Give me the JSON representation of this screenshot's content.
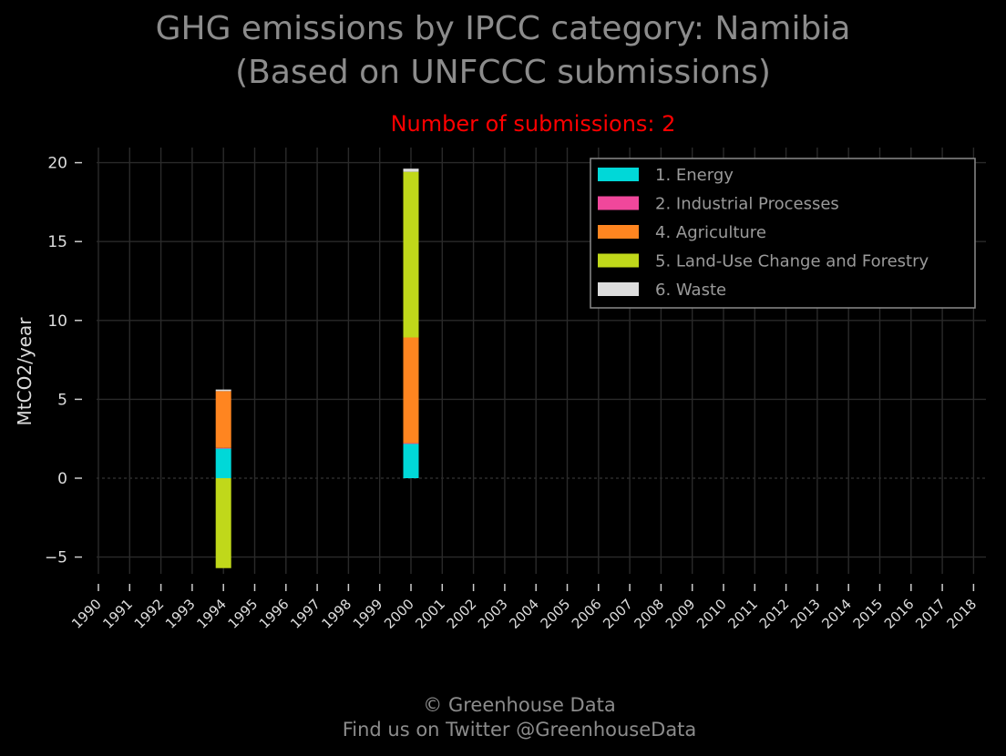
{
  "header": {
    "title_line1": "GHG emissions by IPCC category: Namibia",
    "title_line2": "(Based on UNFCCC submissions)",
    "subtitle": "Number of submissions: 2"
  },
  "footer": {
    "line1": "© Greenhouse Data",
    "line2": "Find us on Twitter @GreenhouseData"
  },
  "colors": {
    "background": "#000000",
    "title": "#8c8c8c",
    "subtitle": "#ff0000",
    "grid": "#2a2a2a",
    "tick_text": "#dddddd"
  },
  "chart_data": {
    "type": "bar",
    "stacked": true,
    "title": "GHG emissions by IPCC category: Namibia",
    "ylabel": "MtCO2/year",
    "xlabel": "",
    "ylim": [
      -7,
      21
    ],
    "yticks": [
      -5,
      0,
      5,
      10,
      15,
      20
    ],
    "ytick_labels": [
      "−5",
      "0",
      "5",
      "10",
      "15",
      "20"
    ],
    "grid": true,
    "legend_placement": "top-right",
    "categories": [
      "1990",
      "1991",
      "1992",
      "1993",
      "1994",
      "1995",
      "1996",
      "1997",
      "1998",
      "1999",
      "2000",
      "2001",
      "2002",
      "2003",
      "2004",
      "2005",
      "2006",
      "2007",
      "2008",
      "2009",
      "2010",
      "2011",
      "2012",
      "2013",
      "2014",
      "2015",
      "2016",
      "2017",
      "2018"
    ],
    "series": [
      {
        "name": "1. Energy",
        "color": "#00d8d8",
        "values": {
          "1994": 1.9,
          "2000": 2.2
        }
      },
      {
        "name": "2. Industrial Processes",
        "color": "#f0479b",
        "values": {
          "1994": 0.02,
          "2000": 0.02
        }
      },
      {
        "name": "4. Agriculture",
        "color": "#ff8520",
        "values": {
          "1994": 3.6,
          "2000": 6.7
        }
      },
      {
        "name": "5. Land-Use Change and Forestry",
        "color": "#c0d81a",
        "values": {
          "1994": -5.7,
          "2000": 10.5
        }
      },
      {
        "name": "6. Waste",
        "color": "#dddddd",
        "values": {
          "1994": 0.1,
          "2000": 0.2
        }
      }
    ]
  }
}
